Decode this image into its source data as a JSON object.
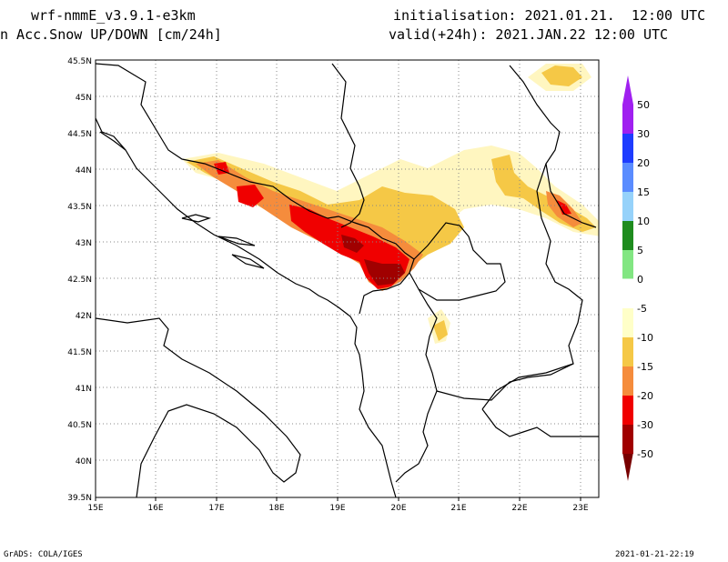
{
  "header": {
    "model": "wrf-nmmE_v3.9.1-e3km",
    "field": "n Acc.Snow UP/DOWN [cm/24h]",
    "initialisation": "initialisation: 2021.01.21.  12:00 UTC",
    "valid": "valid(+24h): 2021.JAN.22 12:00 UTC"
  },
  "footer": {
    "left": "GrADS: COLA/IGES",
    "right": "2021-01-21-22:19"
  },
  "map": {
    "lon_range": [
      15,
      23.3
    ],
    "lat_range": [
      39.5,
      45.5
    ],
    "lon_ticks": [
      "15E",
      "16E",
      "17E",
      "18E",
      "19E",
      "20E",
      "21E",
      "22E",
      "23E"
    ],
    "lat_ticks": [
      "39.5N",
      "40N",
      "40.5N",
      "41N",
      "41.5N",
      "42N",
      "42.5N",
      "43N",
      "43.5N",
      "44N",
      "44.5N",
      "45N",
      "45.5N"
    ]
  },
  "colorbar": {
    "labels": [
      "50",
      "30",
      "20",
      "15",
      "10",
      "5",
      "0",
      "-5",
      "-10",
      "-15",
      "-20",
      "-30",
      "-50"
    ],
    "colors": [
      "#a020f0",
      "#1e3cff",
      "#5a8cff",
      "#96d2fa",
      "#1e8c1e",
      "#82e682",
      "#ffffff",
      "#ffffc8",
      "#f5c846",
      "#f58c3c",
      "#f00000",
      "#a00000"
    ],
    "top_arrow_color": "#a020f0",
    "bottom_arrow_color": "#780000"
  },
  "colors": {
    "light_yellow": "#fff6c0",
    "yellow": "#f5c846",
    "orange": "#f58c3c",
    "red": "#f00000",
    "dark_red": "#a00000"
  }
}
